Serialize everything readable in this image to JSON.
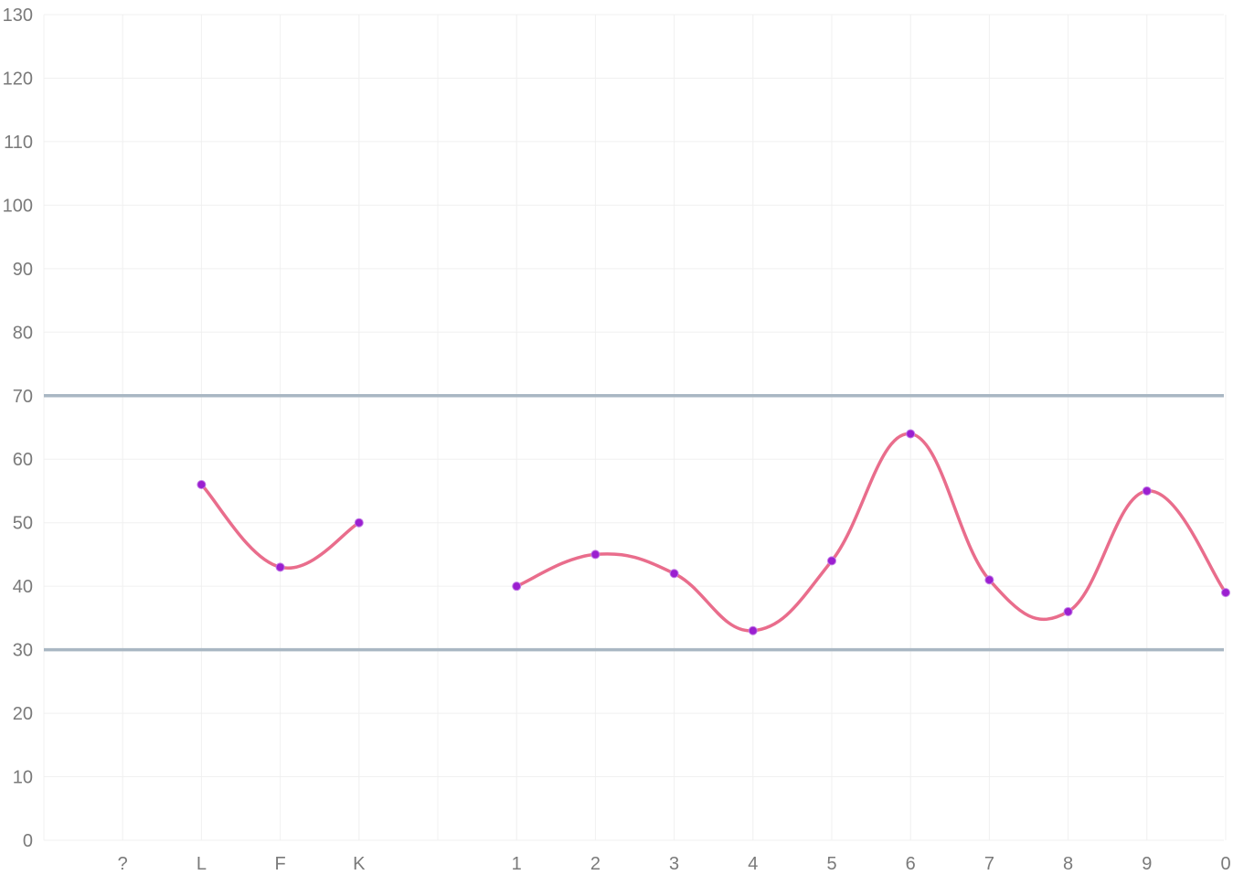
{
  "chart_data": {
    "type": "line",
    "title": "",
    "xlabel": "",
    "ylabel": "",
    "ylim": [
      0,
      130
    ],
    "y_ticks": [
      "0",
      "10",
      "20",
      "30",
      "40",
      "50",
      "60",
      "70",
      "80",
      "90",
      "100",
      "110",
      "120",
      "130"
    ],
    "categories": [
      "?",
      "L",
      "F",
      "K",
      "",
      "1",
      "2",
      "3",
      "4",
      "5",
      "6",
      "7",
      "8",
      "9",
      "0"
    ],
    "series": [
      {
        "values": [
          null,
          56,
          43,
          50,
          null,
          40,
          45,
          42,
          33,
          44,
          64,
          41,
          36,
          55,
          39
        ],
        "line_color": "#e96d8c",
        "point_color": "#9b1fd0"
      }
    ],
    "reference_lines": [
      {
        "value": 70,
        "color": "#a9b7c3"
      },
      {
        "value": 30,
        "color": "#a9b7c3"
      }
    ],
    "grid": true,
    "legend": "none"
  }
}
